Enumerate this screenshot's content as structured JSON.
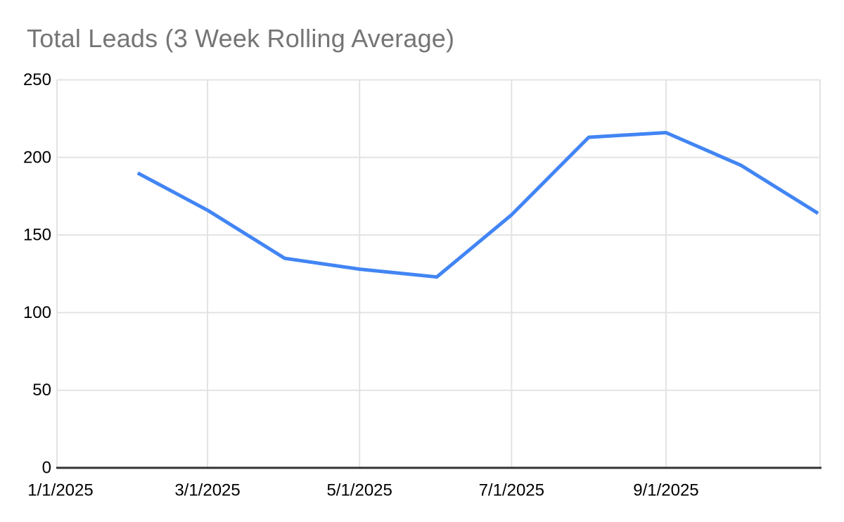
{
  "chart": {
    "title": "Total Leads (3 Week Rolling Average)",
    "title_color": "#757575",
    "line_color": "#4285f4",
    "grid_color": "#e3e3e3",
    "axis_line_color": "#333333",
    "tick_label_color": "#000000",
    "background_color": "#ffffff"
  },
  "chart_data": {
    "type": "line",
    "title": "Total Leads (3 Week Rolling Average)",
    "x": [
      "2/1/2025",
      "3/1/2025",
      "4/1/2025",
      "5/1/2025",
      "6/1/2025",
      "7/1/2025",
      "8/1/2025",
      "9/1/2025",
      "10/1/2025",
      "11/1/2025"
    ],
    "series": [
      {
        "name": "Total Leads (3 Week Rolling Average)",
        "values": [
          190,
          166,
          135,
          128,
          123,
          163,
          213,
          216,
          195,
          164
        ]
      }
    ],
    "xlabel": "",
    "ylabel": "",
    "x_tick_labels": [
      "1/1/2025",
      "3/1/2025",
      "5/1/2025",
      "7/1/2025",
      "9/1/2025"
    ],
    "y_ticks": [
      0,
      50,
      100,
      150,
      200,
      250
    ],
    "ylim": [
      0,
      250
    ],
    "grid": "on",
    "legend": "none"
  }
}
